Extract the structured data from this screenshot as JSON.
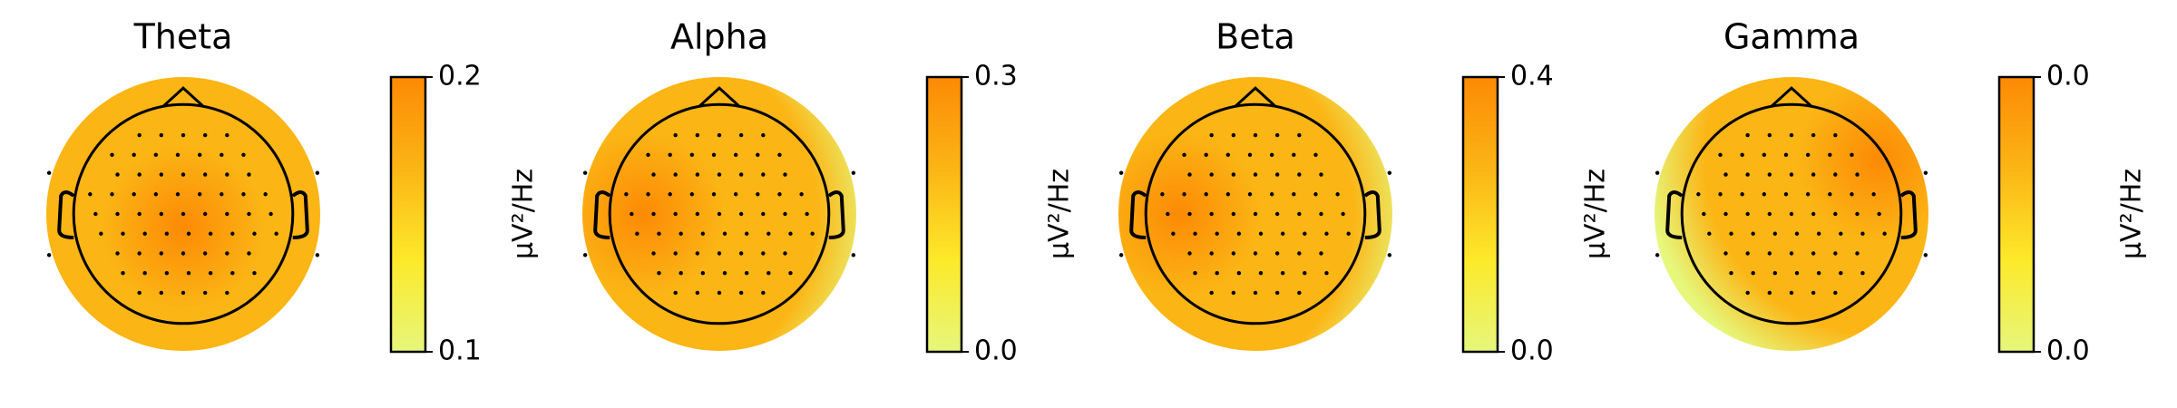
{
  "chart_data": [
    {
      "type": "topomap",
      "title": "Theta",
      "ylabel": "µV²/Hz",
      "ylim": [
        0.1,
        0.2
      ],
      "yticks": [
        0.1,
        0.2
      ],
      "colors": [
        "#e6f77c",
        "#fde92a",
        "#fbb515",
        "#fc8a05"
      ],
      "hotspot": "center"
    },
    {
      "type": "topomap",
      "title": "Alpha",
      "ylabel": "µV²/Hz",
      "ylim": [
        0,
        0.3
      ],
      "yticks": [
        {
          "value": 0,
          "label": "0.0"
        },
        0.3
      ],
      "colors": [
        "#e6f77c",
        "#fde92a",
        "#fbb515",
        "#fc8a05"
      ],
      "hotspot": "left"
    },
    {
      "type": "topomap",
      "title": "Beta",
      "ylabel": "µV²/Hz",
      "ylim": [
        0,
        0.4
      ],
      "yticks": [
        {
          "value": 0,
          "label": "0.0"
        },
        0.4
      ],
      "colors": [
        "#e6f77c",
        "#fde92a",
        "#fbb515",
        "#fc8a05"
      ],
      "hotspot": "left"
    },
    {
      "type": "topomap",
      "title": "Gamma",
      "ylabel": "µV²/Hz",
      "ylim": [
        0.01,
        0.04
      ],
      "yticks": [
        {
          "value": 0.01,
          "label": "0.0"
        },
        {
          "value": 0.04,
          "label": "0.0"
        }
      ],
      "colors": [
        "#e6f77c",
        "#fde92a",
        "#fbb515",
        "#fc8a05"
      ],
      "hotspot": "right"
    }
  ]
}
